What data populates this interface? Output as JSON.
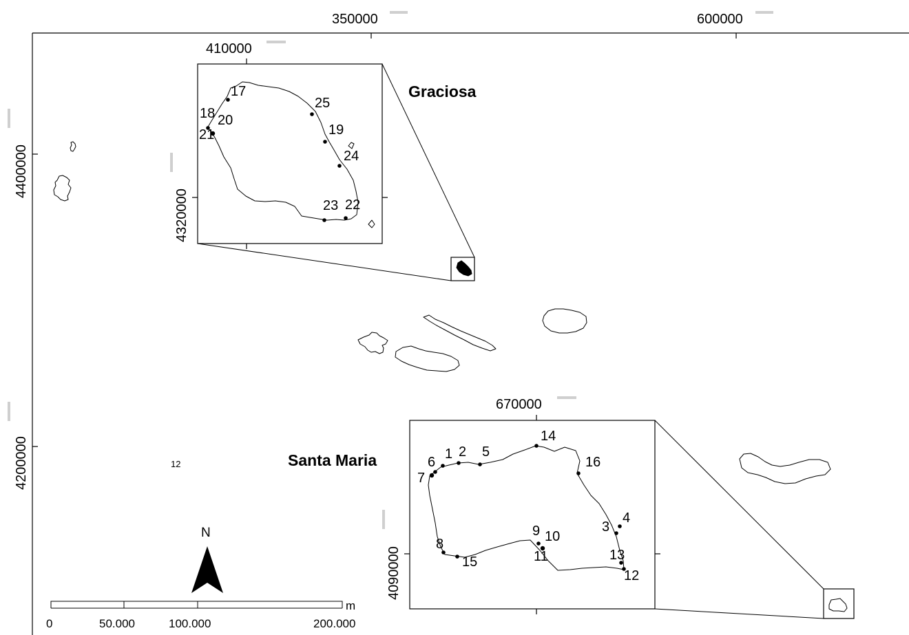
{
  "map": {
    "main_coords": {
      "x_ticks": [
        "350000",
        "600000"
      ],
      "y_ticks": [
        "4400000",
        "4200000"
      ]
    },
    "island_labels": {
      "graciosa": "Graciosa",
      "santa_maria": "Santa Maria"
    },
    "stray_label": "12",
    "graciosa_inset": {
      "x_tick": "410000",
      "y_tick": "4320000",
      "points": [
        "17",
        "18",
        "20",
        "21",
        "25",
        "19",
        "24",
        "23",
        "22"
      ]
    },
    "santa_maria_inset": {
      "x_tick": "670000",
      "y_tick": "4090000",
      "points": [
        "14",
        "1",
        "2",
        "5",
        "6",
        "7",
        "16",
        "4",
        "3",
        "9",
        "10",
        "11",
        "8",
        "15",
        "13",
        "12"
      ]
    },
    "north_arrow": {
      "label": "N",
      "icon": "north-arrow-icon"
    },
    "scale_bar": {
      "unit": "m",
      "labels": [
        "0",
        "50.000",
        "100.000",
        "200.000"
      ]
    }
  }
}
